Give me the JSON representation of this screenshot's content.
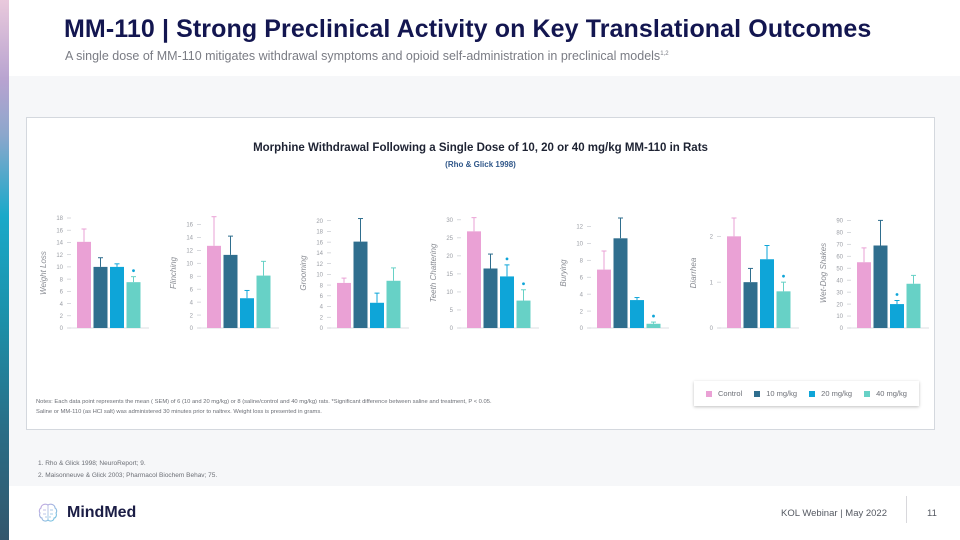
{
  "slide": {
    "title": "MM-110 | Strong Preclinical Activity on Key Translational Outcomes",
    "subtitle": "A single dose of MM-110 mitigates withdrawal symptoms and opioid self-administration in preclinical models",
    "subtitle_superscript": "1,2"
  },
  "chart_header": {
    "title": "Morphine Withdrawal Following a Single Dose of 10, 20 or 40 mg/kg MM-110 in Rats",
    "citation": "(Rho & Glick 1998)"
  },
  "chart_data": {
    "type": "bar",
    "categories": [
      "Control",
      "10 mg/kg",
      "20 mg/kg",
      "40 mg/kg"
    ],
    "colors": [
      "#eaa1d5",
      "#2f6e8e",
      "#0ea5d8",
      "#67d1c6"
    ],
    "legend_position": "bottom-right",
    "significance_marker": "*",
    "panels": [
      {
        "ylabel": "Weight Loss",
        "ylim": [
          0,
          18
        ],
        "yticks": [
          0,
          2,
          4,
          6,
          8,
          10,
          12,
          14,
          16,
          18
        ],
        "values": [
          14.1,
          10.0,
          10.0,
          7.5
        ],
        "errors": [
          2.1,
          1.5,
          0.5,
          0.9
        ],
        "significant": [
          false,
          false,
          false,
          true
        ]
      },
      {
        "ylabel": "Flinching",
        "ylim": [
          0,
          17
        ],
        "yticks": [
          0,
          2,
          4,
          6,
          8,
          10,
          12,
          14,
          16
        ],
        "values": [
          12.7,
          11.3,
          4.6,
          8.1
        ],
        "errors": [
          4.5,
          2.9,
          1.2,
          2.2
        ],
        "significant": [
          false,
          false,
          false,
          false
        ]
      },
      {
        "ylabel": "Grooming",
        "ylim": [
          0,
          20.5
        ],
        "yticks": [
          0,
          2,
          4,
          6,
          8,
          10,
          12,
          14,
          16,
          18,
          20
        ],
        "values": [
          8.4,
          16.1,
          4.7,
          8.8
        ],
        "errors": [
          0.9,
          4.3,
          1.8,
          2.4
        ],
        "significant": [
          false,
          false,
          false,
          false
        ]
      },
      {
        "ylabel": "Teeth Chattering",
        "ylim": [
          0,
          30.5
        ],
        "yticks": [
          0,
          5,
          10,
          15,
          20,
          25,
          30
        ],
        "values": [
          26.8,
          16.5,
          14.3,
          7.6
        ],
        "errors": [
          3.8,
          4.0,
          3.2,
          3.0
        ],
        "significant": [
          false,
          false,
          true,
          true
        ]
      },
      {
        "ylabel": "Burying",
        "ylim": [
          0,
          13
        ],
        "yticks": [
          0,
          2,
          4,
          6,
          8,
          10,
          12
        ],
        "values": [
          6.9,
          10.6,
          3.3,
          0.5
        ],
        "errors": [
          2.2,
          2.4,
          0.3,
          0.2
        ],
        "significant": [
          false,
          false,
          false,
          true
        ]
      },
      {
        "ylabel": "Diarrhea",
        "ylim": [
          0,
          2.4
        ],
        "yticks": [
          0,
          1,
          2
        ],
        "values": [
          2.0,
          1.0,
          1.5,
          0.8
        ],
        "errors": [
          0.4,
          0.3,
          0.3,
          0.2
        ],
        "significant": [
          false,
          false,
          false,
          true
        ]
      },
      {
        "ylabel": "Wet-Dog Shakes",
        "ylim": [
          0,
          92
        ],
        "yticks": [
          0,
          10,
          20,
          30,
          40,
          50,
          60,
          70,
          80,
          90
        ],
        "values": [
          55,
          69,
          20,
          37
        ],
        "errors": [
          12,
          21,
          3,
          7
        ],
        "significant": [
          false,
          false,
          true,
          false
        ]
      }
    ]
  },
  "legend": {
    "items": [
      {
        "label": "Control",
        "color": "#eaa1d5"
      },
      {
        "label": "10 mg/kg",
        "color": "#2f6e8e"
      },
      {
        "label": "20 mg/kg",
        "color": "#0ea5d8"
      },
      {
        "label": "40 mg/kg",
        "color": "#67d1c6"
      }
    ]
  },
  "notes": {
    "line1": "Notes: Each data point represents the mean (    SEM) of 6 (10 and 20 mg/kg) or 8 (saline/control and 40 mg/kg) rats.  *Significant difference between saline and treatment, P < 0.05.",
    "line2": "Saline or MM-110 (as HCl salt) was  administered 30 minutes prior to naltrex. Weight loss is presented in grams."
  },
  "references": [
    "1.  Rho & Glick 1998; NeuroReport; 9.",
    "2.  Maisonneuve & Glick 2003; Pharmacol Biochem Behav; 75."
  ],
  "footer": {
    "brand": "MindMed",
    "event": "KOL Webinar  |  May 2022",
    "page_number": "11"
  }
}
